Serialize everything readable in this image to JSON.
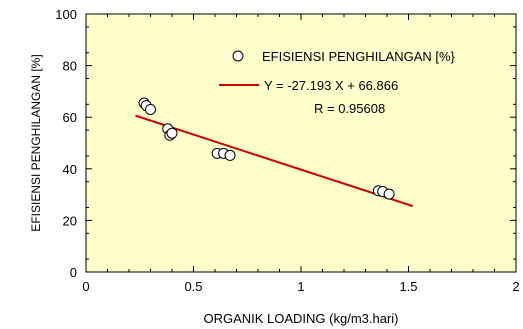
{
  "chart_data": {
    "type": "scatter",
    "xlabel": "ORGANIK LOADING (kg/m3.hari)",
    "ylabel": "EFISIENSI PENGHILANGAN [%]",
    "xlim": [
      0,
      2
    ],
    "ylim": [
      0,
      100
    ],
    "xticks": [
      0,
      0.5,
      1,
      1.5,
      2
    ],
    "xtick_labels": [
      "0",
      "0.5",
      "1",
      "1.5",
      "2"
    ],
    "yticks": [
      0,
      20,
      40,
      60,
      80,
      100
    ],
    "ytick_labels": [
      "0",
      "20",
      "40",
      "60",
      "80",
      "100"
    ],
    "grid": false,
    "background_color": "#ffffcc",
    "legend_position": "top-right",
    "series": [
      {
        "name": "EFISIENSI PENGHILANGAN [%}",
        "marker": "open-circle",
        "points": [
          {
            "x": 0.27,
            "y": 65.5
          },
          {
            "x": 0.28,
            "y": 64.5
          },
          {
            "x": 0.3,
            "y": 63.0
          },
          {
            "x": 0.38,
            "y": 55.5
          },
          {
            "x": 0.39,
            "y": 53.0
          },
          {
            "x": 0.4,
            "y": 53.8
          },
          {
            "x": 0.61,
            "y": 46.0
          },
          {
            "x": 0.64,
            "y": 46.0
          },
          {
            "x": 0.67,
            "y": 45.2
          },
          {
            "x": 1.36,
            "y": 31.5
          },
          {
            "x": 1.38,
            "y": 31.2
          },
          {
            "x": 1.41,
            "y": 30.2
          }
        ]
      }
    ],
    "fit": {
      "label": "Y = -27.193 X + 66.866",
      "r_label": "R = 0.95608",
      "slope": -27.193,
      "intercept": 66.866,
      "x_range": [
        0.23,
        1.52
      ],
      "color": "#cc0000"
    }
  }
}
